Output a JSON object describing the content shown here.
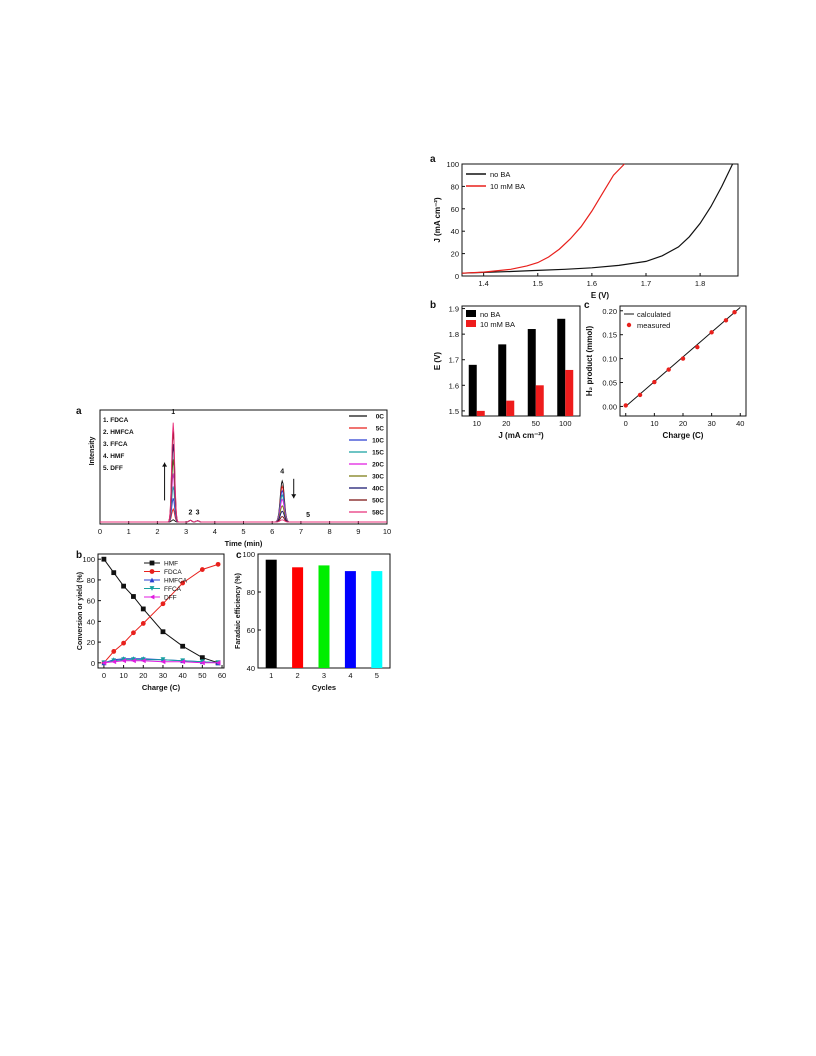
{
  "figure_right": {
    "panel_a": {
      "letter": "a",
      "chart_data": {
        "type": "line",
        "xlabel": "E (V)",
        "ylabel": "J (mA cm⁻²)",
        "xlim": [
          1.36,
          1.87
        ],
        "ylim": [
          0,
          100
        ],
        "xticks": [
          "1.4",
          "1.5",
          "1.6",
          "1.7",
          "1.8"
        ],
        "xtick_values": [
          1.4,
          1.5,
          1.6,
          1.7,
          1.8
        ],
        "yticks": [
          "0",
          "20",
          "40",
          "60",
          "80",
          "100"
        ],
        "ytick_values": [
          0,
          20,
          40,
          60,
          80,
          100
        ],
        "legend_position": "top-left",
        "series": [
          {
            "name": "no BA",
            "color": "#111111",
            "x": [
              1.36,
              1.4,
              1.45,
              1.5,
              1.55,
              1.6,
              1.65,
              1.7,
              1.73,
              1.76,
              1.78,
              1.8,
              1.82,
              1.84,
              1.86
            ],
            "y": [
              2.5,
              3.2,
              4,
              5,
              6,
              7.3,
              9.5,
              13,
              18,
              26,
              35,
              47,
              62,
              80,
              100
            ]
          },
          {
            "name": "10 mM BA",
            "color": "#e8201c",
            "x": [
              1.36,
              1.4,
              1.45,
              1.48,
              1.5,
              1.52,
              1.54,
              1.56,
              1.58,
              1.6,
              1.62,
              1.64,
              1.66
            ],
            "y": [
              2.5,
              3.5,
              6,
              9,
              12,
              17,
              24,
              33,
              44,
              58,
              74,
              90,
              100
            ]
          }
        ]
      }
    },
    "panel_b": {
      "letter": "b",
      "chart_data": {
        "type": "bar",
        "xlabel": "J (mA cm⁻²)",
        "ylabel": "E (V)",
        "categories": [
          "10",
          "20",
          "50",
          "100"
        ],
        "ylim": [
          1.48,
          1.91
        ],
        "yticks": [
          "1.5",
          "1.6",
          "1.7",
          "1.8",
          "1.9"
        ],
        "ytick_values": [
          1.5,
          1.6,
          1.7,
          1.8,
          1.9
        ],
        "legend_position": "top-left",
        "series": [
          {
            "name": "no BA",
            "color": "#000000",
            "values": [
              1.68,
              1.76,
              1.82,
              1.86
            ]
          },
          {
            "name": "10 mM BA",
            "color": "#ee1c1c",
            "values": [
              1.5,
              1.54,
              1.6,
              1.66
            ]
          }
        ]
      }
    },
    "panel_c": {
      "letter": "c",
      "chart_data": {
        "type": "scatter",
        "xlabel": "Charge (C)",
        "ylabel": "H₂ product (mmol)",
        "xlim": [
          -2,
          42
        ],
        "ylim": [
          -0.02,
          0.21
        ],
        "xticks": [
          "0",
          "10",
          "20",
          "30",
          "40"
        ],
        "xtick_values": [
          0,
          10,
          20,
          30,
          40
        ],
        "yticks": [
          "0.00",
          "0.05",
          "0.10",
          "0.15",
          "0.20"
        ],
        "ytick_values": [
          0,
          0.05,
          0.1,
          0.15,
          0.2
        ],
        "legend_position": "top-left",
        "series": [
          {
            "name": "calculated",
            "color": "#111111",
            "type": "line",
            "x": [
              0,
              40
            ],
            "y": [
              0,
              0.207
            ]
          },
          {
            "name": "measured",
            "color": "#e8201c",
            "type": "scatter",
            "x": [
              0,
              5,
              10,
              15,
              20,
              25,
              30,
              35,
              38
            ],
            "y": [
              0.002,
              0.024,
              0.051,
              0.077,
              0.1,
              0.124,
              0.155,
              0.18,
              0.197
            ]
          }
        ]
      }
    }
  },
  "figure_left": {
    "panel_a": {
      "letter": "a",
      "chart_data": {
        "type": "line",
        "xlabel": "Time (min)",
        "ylabel": "Intensity",
        "xlim": [
          0,
          10
        ],
        "ylim": [
          0,
          1
        ],
        "xticks": [
          "0",
          "1",
          "2",
          "3",
          "4",
          "5",
          "6",
          "7",
          "8",
          "9",
          "10"
        ],
        "xtick_values": [
          0,
          1,
          2,
          3,
          4,
          5,
          6,
          7,
          8,
          9,
          10
        ],
        "compound_labels": [
          {
            "text": "1. FDCA",
            "color": "#e8201c"
          },
          {
            "text": "2. HMFCA",
            "color": "#17a0a0"
          },
          {
            "text": "3. FFCA",
            "color": "#2a3fd0"
          },
          {
            "text": "4. HMF",
            "color": "#111111"
          },
          {
            "text": "5. DFF",
            "color": "#e01ce0"
          }
        ],
        "peak_labels": [
          {
            "text": "1",
            "x": 2.55,
            "color": "#e8201c"
          },
          {
            "text": "2",
            "x": 3.15,
            "color": "#17a0a0"
          },
          {
            "text": "3",
            "x": 3.4,
            "color": "#2a3fd0"
          },
          {
            "text": "4",
            "x": 6.35,
            "color": "#111111"
          },
          {
            "text": "5",
            "x": 7.25,
            "color": "#e01ce0"
          }
        ],
        "legend_position": "right",
        "series": [
          {
            "name": "0C",
            "color": "#111111",
            "fdca": 0.02,
            "hmf": 0.38
          },
          {
            "name": "5C",
            "color": "#e8201c",
            "fdca": 0.12,
            "hmf": 0.33
          },
          {
            "name": "10C",
            "color": "#2a3fd0",
            "fdca": 0.22,
            "hmf": 0.29
          },
          {
            "name": "15C",
            "color": "#17a0a0",
            "fdca": 0.33,
            "hmf": 0.25
          },
          {
            "name": "20C",
            "color": "#e01ce0",
            "fdca": 0.45,
            "hmf": 0.21
          },
          {
            "name": "30C",
            "color": "#7a7a10",
            "fdca": 0.58,
            "hmf": 0.15
          },
          {
            "name": "40C",
            "color": "#16146e",
            "fdca": 0.72,
            "hmf": 0.1
          },
          {
            "name": "50C",
            "color": "#7a1010",
            "fdca": 0.84,
            "hmf": 0.05
          },
          {
            "name": "58C",
            "color": "#e8307a",
            "fdca": 0.92,
            "hmf": 0.02
          }
        ]
      }
    },
    "panel_b": {
      "letter": "b",
      "chart_data": {
        "type": "line",
        "xlabel": "Charge (C)",
        "ylabel": "Conversion or yield (%)",
        "xlim": [
          -3,
          61
        ],
        "ylim": [
          -5,
          105
        ],
        "xticks": [
          "0",
          "10",
          "20",
          "30",
          "40",
          "50",
          "60"
        ],
        "xtick_values": [
          0,
          10,
          20,
          30,
          40,
          50,
          60
        ],
        "yticks": [
          "0",
          "20",
          "40",
          "60",
          "80",
          "100"
        ],
        "ytick_values": [
          0,
          20,
          40,
          60,
          80,
          100
        ],
        "legend_position": "top-center",
        "x": [
          0,
          5,
          10,
          15,
          20,
          30,
          40,
          50,
          58
        ],
        "series": [
          {
            "name": "HMF",
            "color": "#111111",
            "marker": "square",
            "values": [
              100,
              87,
              74,
              64,
              52,
              30,
              16,
              5,
              0
            ]
          },
          {
            "name": "FDCA",
            "color": "#e8201c",
            "marker": "circle",
            "values": [
              0,
              11,
              19,
              29,
              38,
              57,
              77,
              90,
              95
            ]
          },
          {
            "name": "HMFCA",
            "color": "#2a3fd0",
            "marker": "triangle-up",
            "values": [
              0,
              3,
              4,
              4,
              4,
              3,
              2,
              1,
              0
            ]
          },
          {
            "name": "FFCA",
            "color": "#17a0a0",
            "marker": "triangle-down",
            "values": [
              0,
              2,
              3,
              3,
              3,
              3,
              2,
              1,
              0
            ]
          },
          {
            "name": "DFF",
            "color": "#e01ce0",
            "marker": "triangle-left",
            "values": [
              0,
              1,
              2,
              2,
              2,
              1,
              1,
              0,
              0
            ]
          }
        ]
      }
    },
    "panel_c": {
      "letter": "c",
      "chart_data": {
        "type": "bar",
        "xlabel": "Cycles",
        "ylabel": "Faradaic efficiency (%)",
        "categories": [
          "1",
          "2",
          "3",
          "4",
          "5"
        ],
        "values": [
          97,
          93,
          94,
          91,
          91
        ],
        "colors": [
          "#000000",
          "#ff0000",
          "#00ee00",
          "#0000ff",
          "#00ffff"
        ],
        "ylim": [
          40,
          100
        ],
        "yticks": [
          "40",
          "60",
          "80",
          "100"
        ],
        "ytick_values": [
          40,
          60,
          80,
          100
        ]
      }
    }
  }
}
